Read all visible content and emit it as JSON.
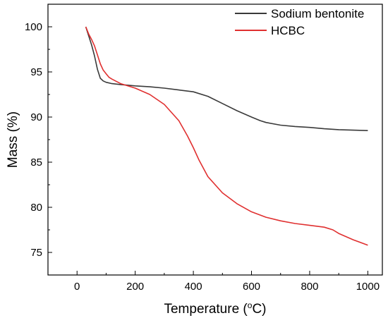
{
  "chart_data": {
    "type": "line",
    "title": "",
    "xlabel": "Temperature (ºC)",
    "xlabel_parts": {
      "pre": "Temperature (",
      "sup": "o",
      "post": "C)"
    },
    "ylabel": "Mass (%)",
    "xlim": [
      -100,
      1050
    ],
    "ylim": [
      72.5,
      102.5
    ],
    "xticks": [
      0,
      200,
      400,
      600,
      800,
      1000
    ],
    "yticks": [
      75,
      80,
      85,
      90,
      95,
      100
    ],
    "grid": false,
    "legend_position": "top-right",
    "series": [
      {
        "name": "Sodium bentonite",
        "color": "#3a3a3a",
        "x": [
          30,
          40,
          50,
          60,
          70,
          80,
          90,
          100,
          120,
          150,
          200,
          250,
          300,
          350,
          400,
          450,
          500,
          550,
          600,
          630,
          650,
          700,
          750,
          800,
          850,
          900,
          950,
          1000
        ],
        "y": [
          100.0,
          99.0,
          98.0,
          96.8,
          95.3,
          94.3,
          94.0,
          93.85,
          93.7,
          93.6,
          93.45,
          93.35,
          93.2,
          93.0,
          92.8,
          92.3,
          91.5,
          90.7,
          90.0,
          89.6,
          89.4,
          89.1,
          88.95,
          88.85,
          88.7,
          88.6,
          88.55,
          88.5
        ]
      },
      {
        "name": "HCBC",
        "color": "#e03030",
        "x": [
          30,
          40,
          50,
          60,
          70,
          80,
          90,
          100,
          110,
          120,
          150,
          200,
          250,
          300,
          350,
          380,
          400,
          420,
          450,
          500,
          550,
          600,
          650,
          700,
          750,
          800,
          850,
          880,
          900,
          950,
          1000
        ],
        "y": [
          100.0,
          99.2,
          98.6,
          97.9,
          96.9,
          95.9,
          95.2,
          94.8,
          94.4,
          94.2,
          93.7,
          93.2,
          92.5,
          91.4,
          89.6,
          87.9,
          86.6,
          85.2,
          83.4,
          81.6,
          80.4,
          79.5,
          78.9,
          78.5,
          78.2,
          78.0,
          77.8,
          77.5,
          77.1,
          76.4,
          75.8
        ]
      }
    ]
  }
}
